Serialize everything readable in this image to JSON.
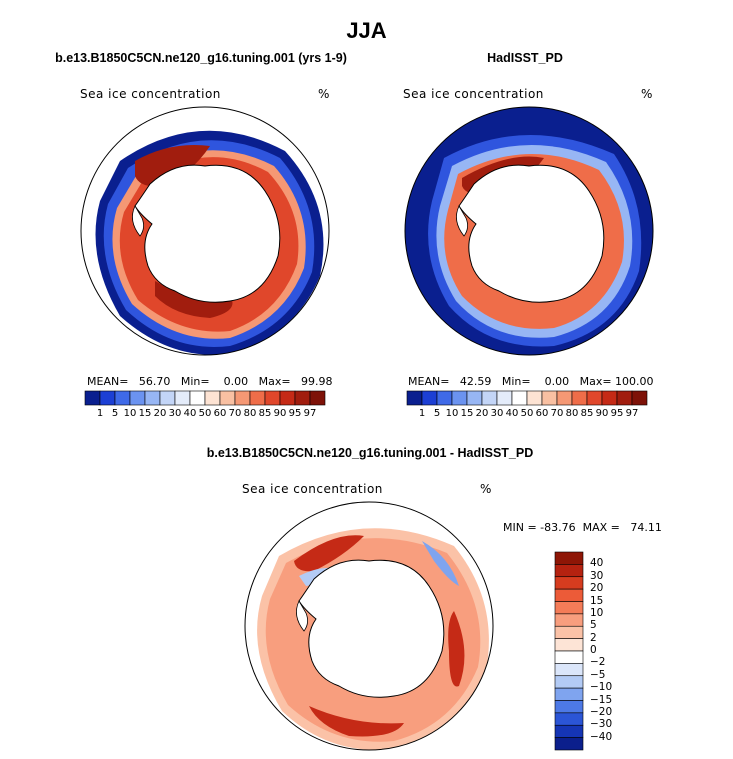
{
  "title": "JJA",
  "panels": [
    {
      "name": "model",
      "title": "b.e13.B1850C5CN.ne120_g16.tuning.001 (yrs 1-9)",
      "field_label": "Sea ice concentration",
      "units": "%",
      "stats_text": "MEAN=   56.70   Min=    0.00   Max=   99.98"
    },
    {
      "name": "obs",
      "title": "HadISST_PD",
      "field_label": "Sea ice concentration",
      "units": "%",
      "stats_text": "MEAN=   42.59   Min=    0.00   Max= 100.00"
    },
    {
      "name": "diff",
      "title": "b.e13.B1850C5CN.ne120_g16.tuning.001 - HadISST_PD",
      "field_label": "Sea ice concentration",
      "units": "%",
      "stats_text": "MIN = -83.76  MAX =   74.11"
    }
  ],
  "colorbar_abs": {
    "labels": [
      "1",
      "5",
      "10",
      "15",
      "20",
      "30",
      "40",
      "50",
      "60",
      "70",
      "80",
      "85",
      "90",
      "95",
      "97"
    ],
    "colors": [
      "#0a1f8f",
      "#1c3fd4",
      "#3f6ae8",
      "#6b93f0",
      "#97b6f4",
      "#c3d5f7",
      "#e4ecfa",
      "#ffffff",
      "#fde3d3",
      "#f9c0a2",
      "#f59874",
      "#ef6d49",
      "#e0472b",
      "#c52a16",
      "#a11d0e",
      "#7e1208"
    ]
  },
  "colorbar_diff": {
    "labels": [
      "40",
      "30",
      "20",
      "15",
      "10",
      "5",
      "2",
      "0",
      "−2",
      "−5",
      "−10",
      "−15",
      "−20",
      "−30",
      "−40"
    ],
    "colors": [
      "#8e1606",
      "#b52210",
      "#d63c1f",
      "#ec5b38",
      "#f47c58",
      "#f89e7e",
      "#fbc2a7",
      "#fde4d6",
      "#ffffff",
      "#dbe6fa",
      "#b3cbf5",
      "#7fa4ef",
      "#4d79e6",
      "#2b55d6",
      "#1535b5",
      "#0b1f8c"
    ]
  }
}
